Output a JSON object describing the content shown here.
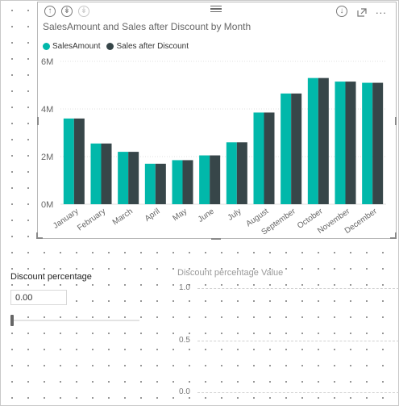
{
  "visual": {
    "title": "SalesAmount and Sales after Discount by Month",
    "header_icons": [
      "drill-up-icon",
      "drill-down-icon",
      "expand-all-icon",
      "download-icon",
      "focus-mode-icon",
      "more-options-icon"
    ],
    "more_label": "..."
  },
  "legend": [
    {
      "label": "SalesAmount",
      "color": "#01B8AA"
    },
    {
      "label": "Sales after Discount",
      "color": "#374649"
    }
  ],
  "chart_data": {
    "type": "bar",
    "categories": [
      "January",
      "February",
      "March",
      "April",
      "May",
      "June",
      "July",
      "August",
      "September",
      "October",
      "November",
      "December"
    ],
    "series": [
      {
        "name": "SalesAmount",
        "color": "#01B8AA",
        "values": [
          3.6,
          2.55,
          2.2,
          1.7,
          1.85,
          2.05,
          2.6,
          3.85,
          4.65,
          5.3,
          5.15,
          5.1
        ]
      },
      {
        "name": "Sales after Discount",
        "color": "#374649",
        "values": [
          3.6,
          2.55,
          2.2,
          1.7,
          1.85,
          2.05,
          2.6,
          3.85,
          4.65,
          5.3,
          5.15,
          5.1
        ]
      }
    ],
    "unit": "M",
    "ylim": [
      0,
      6
    ],
    "yticks": [
      "0M",
      "2M",
      "4M",
      "6M"
    ],
    "ytick_values": [
      0,
      2,
      4,
      6
    ],
    "grid": true,
    "legend_position": "top-left"
  },
  "slicer": {
    "title": "Discount percentage",
    "value": "0.00",
    "slider_fraction": 0
  },
  "card": {
    "title": "Discount percentage Value",
    "ticks": [
      "1.0",
      "0.5",
      "0.0"
    ]
  }
}
